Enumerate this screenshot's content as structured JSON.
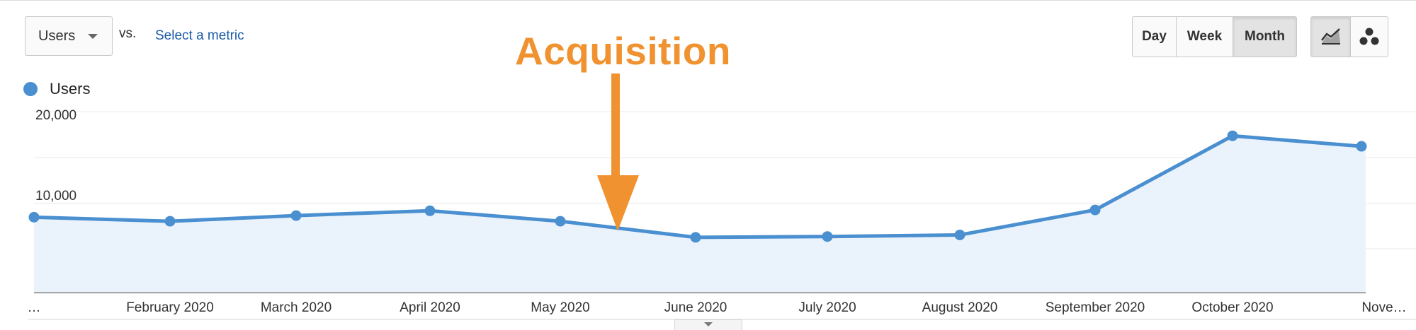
{
  "toolbar": {
    "metric_select": "Users",
    "vs_label": "vs.",
    "select_metric_link": "Select a metric",
    "period_buttons": [
      "Day",
      "Week",
      "Month"
    ],
    "active_period": "Month",
    "chart_type_buttons": [
      {
        "icon": "line-chart-icon",
        "active": true
      },
      {
        "icon": "motion-chart-icon",
        "active": false
      }
    ]
  },
  "legend": {
    "label": "Users",
    "color": "#4a8fd0"
  },
  "annotation": {
    "text": "Acquisition",
    "color": "#f0922f"
  },
  "chart_data": {
    "type": "area",
    "x": [
      "…",
      "February 2020",
      "March 2020",
      "April 2020",
      "May 2020",
      "June 2020",
      "July 2020",
      "August 2020",
      "September 2020",
      "October 2020",
      "Nove…"
    ],
    "series": [
      {
        "name": "Users",
        "color": "#4a8fd0",
        "values": [
          8300,
          7800,
          8500,
          9100,
          7800,
          5800,
          5900,
          6100,
          9200,
          18400,
          17100
        ]
      }
    ],
    "y_ticks": [
      "10,000",
      "20,000"
    ],
    "y_tick_values": [
      10000,
      20000
    ],
    "ylim": [
      0,
      20000
    ],
    "grid": true,
    "fill_color": "#eaf2fb"
  }
}
